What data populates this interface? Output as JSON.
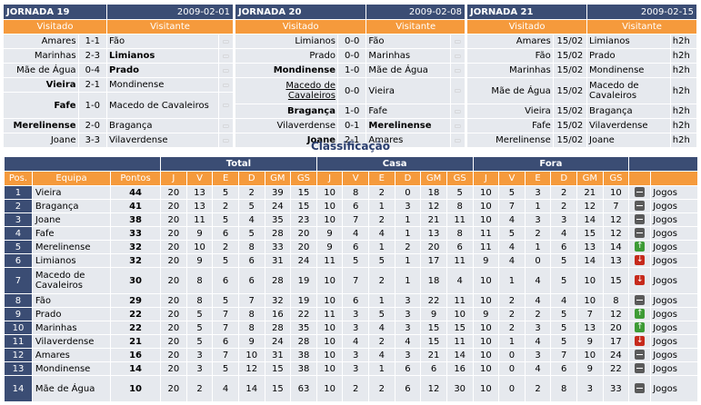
{
  "rounds": [
    {
      "name": "JORNADA 19",
      "date": "2009-02-01",
      "home_label": "Visitado",
      "away_label": "Visitante",
      "matches": [
        {
          "home": "Amares",
          "score": "1-1",
          "away": "Fão",
          "winner": ""
        },
        {
          "home": "Marinhas",
          "score": "2-3",
          "away": "Limianos",
          "winner": "away"
        },
        {
          "home": "Mãe de Água",
          "score": "0-4",
          "away": "Prado",
          "winner": "away"
        },
        {
          "home": "Vieira",
          "score": "2-1",
          "away": "Mondinense",
          "winner": "home"
        },
        {
          "home": "Fafe",
          "score": "1-0",
          "away": "Macedo de Cavaleiros",
          "winner": "home"
        },
        {
          "home": "Merelinense",
          "score": "2-0",
          "away": "Bragança",
          "winner": "home"
        },
        {
          "home": "Joane",
          "score": "3-3",
          "away": "Vilaverdense",
          "winner": ""
        }
      ]
    },
    {
      "name": "JORNADA 20",
      "date": "2009-02-08",
      "home_label": "Visitado",
      "away_label": "Visitante",
      "matches": [
        {
          "home": "Limianos",
          "score": "0-0",
          "away": "Fão",
          "winner": ""
        },
        {
          "home": "Prado",
          "score": "0-0",
          "away": "Marinhas",
          "winner": ""
        },
        {
          "home": "Mondinense",
          "score": "1-0",
          "away": "Mãe de Água",
          "winner": "home"
        },
        {
          "home": "Macedo de Cavaleiros",
          "score": "0-0",
          "away": "Vieira",
          "winner": ""
        },
        {
          "home": "Bragança",
          "score": "1-0",
          "away": "Fafe",
          "winner": "home"
        },
        {
          "home": "Vilaverdense",
          "score": "0-1",
          "away": "Merelinense",
          "winner": "away"
        },
        {
          "home": "Joane",
          "score": "2-1",
          "away": "Amares",
          "winner": "home"
        }
      ]
    },
    {
      "name": "JORNADA 21",
      "date": "2009-02-15",
      "home_label": "Visitado",
      "away_label": "Visitante",
      "matches": [
        {
          "home": "Amares",
          "score": "15/02",
          "away": "Limianos",
          "time": "h2h"
        },
        {
          "home": "Fão",
          "score": "15/02",
          "away": "Prado",
          "time": "h2h"
        },
        {
          "home": "Marinhas",
          "score": "15/02",
          "away": "Mondinense",
          "time": "h2h"
        },
        {
          "home": "Mãe de Água",
          "score": "15/02",
          "away": "Macedo de Cavaleiros",
          "time": "h2h"
        },
        {
          "home": "Vieira",
          "score": "15/02",
          "away": "Bragança",
          "time": "h2h"
        },
        {
          "home": "Fafe",
          "score": "15/02",
          "away": "Vilaverdense",
          "time": "h2h"
        },
        {
          "home": "Merelinense",
          "score": "15/02",
          "away": "Joane",
          "time": "h2h"
        }
      ]
    }
  ],
  "standings": {
    "title": "Classificação",
    "groups": {
      "total": "Total",
      "home": "Casa",
      "away": "Fora"
    },
    "columns": {
      "pos": "Pos.",
      "team": "Equipa",
      "points": "Pontos",
      "j": "J",
      "v": "V",
      "e": "E",
      "d": "D",
      "gm": "GM",
      "gs": "GS"
    },
    "link_label": "Jogos",
    "rows": [
      {
        "pos": "1",
        "team": "Vieira",
        "pts": "44",
        "t": [
          "20",
          "13",
          "5",
          "2",
          "39",
          "15"
        ],
        "h": [
          "10",
          "8",
          "2",
          "0",
          "18",
          "5"
        ],
        "a": [
          "10",
          "5",
          "3",
          "2",
          "21",
          "10"
        ],
        "trend": "same"
      },
      {
        "pos": "2",
        "team": "Bragança",
        "pts": "41",
        "t": [
          "20",
          "13",
          "2",
          "5",
          "24",
          "15"
        ],
        "h": [
          "10",
          "6",
          "1",
          "3",
          "12",
          "8"
        ],
        "a": [
          "10",
          "7",
          "1",
          "2",
          "12",
          "7"
        ],
        "trend": "same"
      },
      {
        "pos": "3",
        "team": "Joane",
        "pts": "38",
        "t": [
          "20",
          "11",
          "5",
          "4",
          "35",
          "23"
        ],
        "h": [
          "10",
          "7",
          "2",
          "1",
          "21",
          "11"
        ],
        "a": [
          "10",
          "4",
          "3",
          "3",
          "14",
          "12"
        ],
        "trend": "same"
      },
      {
        "pos": "4",
        "team": "Fafe",
        "pts": "33",
        "t": [
          "20",
          "9",
          "6",
          "5",
          "28",
          "20"
        ],
        "h": [
          "9",
          "4",
          "4",
          "1",
          "13",
          "8"
        ],
        "a": [
          "11",
          "5",
          "2",
          "4",
          "15",
          "12"
        ],
        "trend": "same"
      },
      {
        "pos": "5",
        "team": "Merelinense",
        "pts": "32",
        "t": [
          "20",
          "10",
          "2",
          "8",
          "33",
          "20"
        ],
        "h": [
          "9",
          "6",
          "1",
          "2",
          "20",
          "6"
        ],
        "a": [
          "11",
          "4",
          "1",
          "6",
          "13",
          "14"
        ],
        "trend": "up"
      },
      {
        "pos": "6",
        "team": "Limianos",
        "pts": "32",
        "t": [
          "20",
          "9",
          "5",
          "6",
          "31",
          "24"
        ],
        "h": [
          "11",
          "5",
          "5",
          "1",
          "17",
          "11"
        ],
        "a": [
          "9",
          "4",
          "0",
          "5",
          "14",
          "13"
        ],
        "trend": "down"
      },
      {
        "pos": "7",
        "team": "Macedo de Cavaleiros",
        "pts": "30",
        "t": [
          "20",
          "8",
          "6",
          "6",
          "28",
          "19"
        ],
        "h": [
          "10",
          "7",
          "2",
          "1",
          "18",
          "4"
        ],
        "a": [
          "10",
          "1",
          "4",
          "5",
          "10",
          "15"
        ],
        "trend": "down",
        "tall": true
      },
      {
        "pos": "8",
        "team": "Fão",
        "pts": "29",
        "t": [
          "20",
          "8",
          "5",
          "7",
          "32",
          "19"
        ],
        "h": [
          "10",
          "6",
          "1",
          "3",
          "22",
          "11"
        ],
        "a": [
          "10",
          "2",
          "4",
          "4",
          "10",
          "8"
        ],
        "trend": "same"
      },
      {
        "pos": "9",
        "team": "Prado",
        "pts": "22",
        "t": [
          "20",
          "5",
          "7",
          "8",
          "16",
          "22"
        ],
        "h": [
          "11",
          "3",
          "5",
          "3",
          "9",
          "10"
        ],
        "a": [
          "9",
          "2",
          "2",
          "5",
          "7",
          "12"
        ],
        "trend": "up"
      },
      {
        "pos": "10",
        "team": "Marinhas",
        "pts": "22",
        "t": [
          "20",
          "5",
          "7",
          "8",
          "28",
          "35"
        ],
        "h": [
          "10",
          "3",
          "4",
          "3",
          "15",
          "15"
        ],
        "a": [
          "10",
          "2",
          "3",
          "5",
          "13",
          "20"
        ],
        "trend": "up"
      },
      {
        "pos": "11",
        "team": "Vilaverdense",
        "pts": "21",
        "t": [
          "20",
          "5",
          "6",
          "9",
          "24",
          "28"
        ],
        "h": [
          "10",
          "4",
          "2",
          "4",
          "15",
          "11"
        ],
        "a": [
          "10",
          "1",
          "4",
          "5",
          "9",
          "17"
        ],
        "trend": "down"
      },
      {
        "pos": "12",
        "team": "Amares",
        "pts": "16",
        "t": [
          "20",
          "3",
          "7",
          "10",
          "31",
          "38"
        ],
        "h": [
          "10",
          "3",
          "4",
          "3",
          "21",
          "14"
        ],
        "a": [
          "10",
          "0",
          "3",
          "7",
          "10",
          "24"
        ],
        "trend": "same"
      },
      {
        "pos": "13",
        "team": "Mondinense",
        "pts": "14",
        "t": [
          "20",
          "3",
          "5",
          "12",
          "15",
          "38"
        ],
        "h": [
          "10",
          "3",
          "1",
          "6",
          "6",
          "16"
        ],
        "a": [
          "10",
          "0",
          "4",
          "6",
          "9",
          "22"
        ],
        "trend": "same"
      },
      {
        "pos": "14",
        "team": "Mãe de Água",
        "pts": "10",
        "t": [
          "20",
          "2",
          "4",
          "14",
          "15",
          "63"
        ],
        "h": [
          "10",
          "2",
          "2",
          "6",
          "12",
          "30"
        ],
        "a": [
          "10",
          "0",
          "2",
          "8",
          "3",
          "33"
        ],
        "trend": "same",
        "tall": true
      }
    ]
  }
}
